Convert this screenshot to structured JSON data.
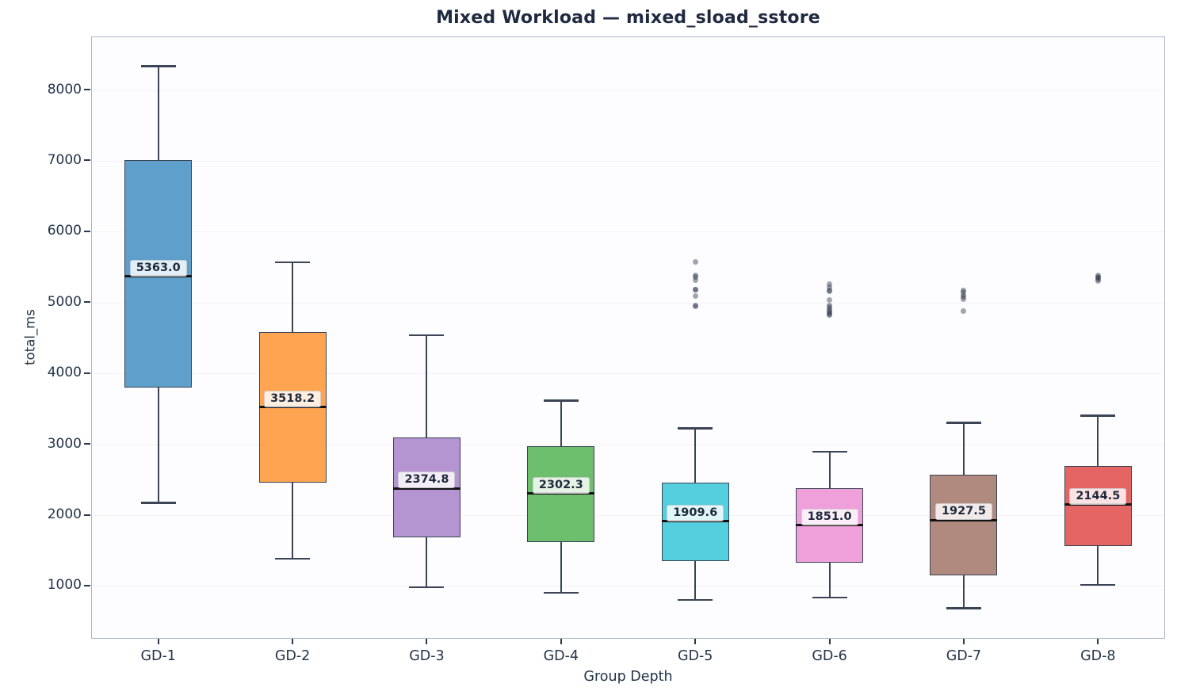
{
  "chart_data": {
    "type": "box",
    "title": "Mixed Workload — mixed_sload_sstore",
    "xlabel": "Group Depth",
    "ylabel": "total_ms",
    "categories": [
      "GD-1",
      "GD-2",
      "GD-3",
      "GD-4",
      "GD-5",
      "GD-6",
      "GD-7",
      "GD-8"
    ],
    "y_ticks": [
      1000,
      2000,
      3000,
      4000,
      5000,
      6000,
      7000,
      8000
    ],
    "ylim": [
      250,
      8750
    ],
    "grid": "horizontal",
    "legend": "none",
    "series": [
      {
        "category": "GD-1",
        "color": "#5E9FCB",
        "whisker_low": 2170,
        "q1": 3800,
        "median": 5363.0,
        "q3": 7000,
        "whisker_high": 8330,
        "median_label": "5363.0",
        "outliers": []
      },
      {
        "category": "GD-2",
        "color": "#FFA552",
        "whisker_low": 1380,
        "q1": 2450,
        "median": 3518.2,
        "q3": 4580,
        "whisker_high": 5565,
        "median_label": "3518.2",
        "outliers": []
      },
      {
        "category": "GD-3",
        "color": "#B494D1",
        "whisker_low": 975,
        "q1": 1680,
        "median": 2374.8,
        "q3": 3090,
        "whisker_high": 4535,
        "median_label": "2374.8",
        "outliers": []
      },
      {
        "category": "GD-4",
        "color": "#6DBE6D",
        "whisker_low": 900,
        "q1": 1620,
        "median": 2302.3,
        "q3": 2970,
        "whisker_high": 3610,
        "median_label": "2302.3",
        "outliers": []
      },
      {
        "category": "GD-5",
        "color": "#55CEDE",
        "whisker_low": 800,
        "q1": 1350,
        "median": 1909.6,
        "q3": 2450,
        "whisker_high": 3220,
        "median_label": "1909.6",
        "outliers": [
          5570,
          5380,
          5360,
          5310,
          5180,
          5175,
          5090,
          4950,
          4945
        ]
      },
      {
        "category": "GD-6",
        "color": "#EFA0DA",
        "whisker_low": 830,
        "q1": 1320,
        "median": 1851.0,
        "q3": 2380,
        "whisker_high": 2890,
        "median_label": "1851.0",
        "outliers": [
          5250,
          5210,
          5170,
          5150,
          5030,
          4950,
          4930,
          4900,
          4870,
          4850,
          4830,
          4820
        ]
      },
      {
        "category": "GD-7",
        "color": "#B08A7E",
        "whisker_low": 680,
        "q1": 1150,
        "median": 1927.5,
        "q3": 2560,
        "whisker_high": 3300,
        "median_label": "1927.5",
        "outliers": [
          5160,
          5140,
          5100,
          5080,
          5040,
          4880
        ]
      },
      {
        "category": "GD-8",
        "color": "#E56565",
        "whisker_low": 1010,
        "q1": 1560,
        "median": 2144.5,
        "q3": 2690,
        "whisker_high": 3400,
        "median_label": "2144.5",
        "outliers": [
          5380,
          5360,
          5340,
          5320,
          5300
        ]
      }
    ]
  }
}
